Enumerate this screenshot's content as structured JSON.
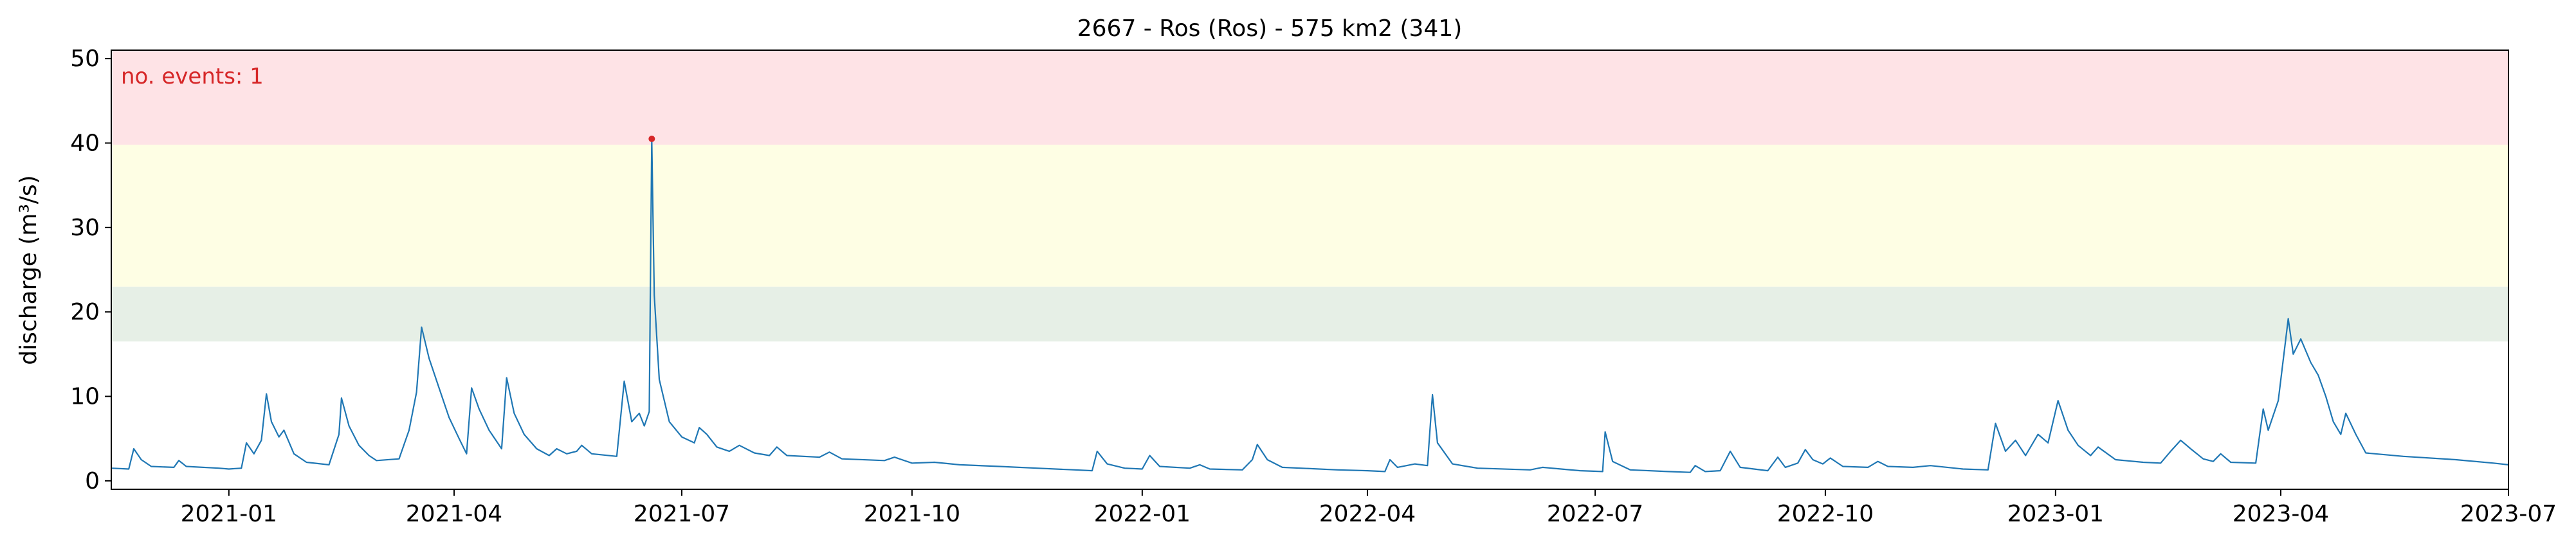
{
  "chart_data": {
    "type": "line",
    "title": "2667 - Ros (Ros) - 575 km2 (341)",
    "xlabel": "",
    "ylabel": "discharge (m³/s)",
    "annotation": "no. events: 1",
    "xlim": [
      "2020-11-15",
      "2023-07-01"
    ],
    "ylim": [
      -1,
      51
    ],
    "x_ticks": [
      {
        "date": "2021-01-01",
        "label": "2021-01"
      },
      {
        "date": "2021-04-01",
        "label": "2021-04"
      },
      {
        "date": "2021-07-01",
        "label": "2021-07"
      },
      {
        "date": "2021-10-01",
        "label": "2021-10"
      },
      {
        "date": "2022-01-01",
        "label": "2022-01"
      },
      {
        "date": "2022-04-01",
        "label": "2022-04"
      },
      {
        "date": "2022-07-01",
        "label": "2022-07"
      },
      {
        "date": "2022-10-01",
        "label": "2022-10"
      },
      {
        "date": "2023-01-01",
        "label": "2023-01"
      },
      {
        "date": "2023-04-01",
        "label": "2023-04"
      },
      {
        "date": "2023-07-01",
        "label": "2023-07"
      }
    ],
    "y_ticks": [
      0,
      10,
      20,
      30,
      40,
      50
    ],
    "bands": [
      {
        "from": 16.5,
        "to": 23.0,
        "color": "#e6efe6"
      },
      {
        "from": 23.0,
        "to": 39.8,
        "color": "#fefee4"
      },
      {
        "from": 39.8,
        "to": 51.0,
        "color": "#fee3e6"
      }
    ],
    "series": [
      {
        "color": "#1f77b4",
        "points": [
          [
            "2020-11-15",
            1.5
          ],
          [
            "2020-11-22",
            1.4
          ],
          [
            "2020-11-24",
            3.8
          ],
          [
            "2020-11-27",
            2.5
          ],
          [
            "2020-12-01",
            1.7
          ],
          [
            "2020-12-10",
            1.6
          ],
          [
            "2020-12-12",
            2.4
          ],
          [
            "2020-12-15",
            1.7
          ],
          [
            "2020-12-28",
            1.5
          ],
          [
            "2021-01-01",
            1.4
          ],
          [
            "2021-01-06",
            1.5
          ],
          [
            "2021-01-08",
            4.5
          ],
          [
            "2021-01-11",
            3.2
          ],
          [
            "2021-01-14",
            4.8
          ],
          [
            "2021-01-16",
            10.3
          ],
          [
            "2021-01-18",
            7.0
          ],
          [
            "2021-01-21",
            5.2
          ],
          [
            "2021-01-23",
            6.0
          ],
          [
            "2021-01-27",
            3.2
          ],
          [
            "2021-02-01",
            2.2
          ],
          [
            "2021-02-10",
            1.9
          ],
          [
            "2021-02-14",
            5.5
          ],
          [
            "2021-02-15",
            9.8
          ],
          [
            "2021-02-18",
            6.5
          ],
          [
            "2021-02-22",
            4.2
          ],
          [
            "2021-02-26",
            3.0
          ],
          [
            "2021-03-01",
            2.4
          ],
          [
            "2021-03-10",
            2.6
          ],
          [
            "2021-03-14",
            6.0
          ],
          [
            "2021-03-17",
            10.5
          ],
          [
            "2021-03-19",
            18.2
          ],
          [
            "2021-03-22",
            14.5
          ],
          [
            "2021-03-26",
            11.0
          ],
          [
            "2021-03-30",
            7.5
          ],
          [
            "2021-04-03",
            5.0
          ],
          [
            "2021-04-06",
            3.2
          ],
          [
            "2021-04-08",
            11.0
          ],
          [
            "2021-04-11",
            8.5
          ],
          [
            "2021-04-15",
            6.0
          ],
          [
            "2021-04-20",
            3.8
          ],
          [
            "2021-04-22",
            12.2
          ],
          [
            "2021-04-25",
            8.0
          ],
          [
            "2021-04-29",
            5.5
          ],
          [
            "2021-05-04",
            3.8
          ],
          [
            "2021-05-09",
            3.0
          ],
          [
            "2021-05-12",
            3.8
          ],
          [
            "2021-05-16",
            3.2
          ],
          [
            "2021-05-20",
            3.5
          ],
          [
            "2021-05-22",
            4.2
          ],
          [
            "2021-05-26",
            3.2
          ],
          [
            "2021-06-05",
            2.9
          ],
          [
            "2021-06-08",
            11.8
          ],
          [
            "2021-06-11",
            7.0
          ],
          [
            "2021-06-14",
            8.0
          ],
          [
            "2021-06-16",
            6.5
          ],
          [
            "2021-06-18",
            8.2
          ],
          [
            "2021-06-19",
            40.5
          ],
          [
            "2021-06-20",
            22.0
          ],
          [
            "2021-06-22",
            12.0
          ],
          [
            "2021-06-26",
            7.0
          ],
          [
            "2021-07-01",
            5.2
          ],
          [
            "2021-07-06",
            4.5
          ],
          [
            "2021-07-08",
            6.3
          ],
          [
            "2021-07-11",
            5.5
          ],
          [
            "2021-07-15",
            4.0
          ],
          [
            "2021-07-20",
            3.5
          ],
          [
            "2021-07-24",
            4.2
          ],
          [
            "2021-07-30",
            3.3
          ],
          [
            "2021-08-05",
            3.0
          ],
          [
            "2021-08-08",
            4.0
          ],
          [
            "2021-08-12",
            3.0
          ],
          [
            "2021-08-25",
            2.8
          ],
          [
            "2021-08-29",
            3.4
          ],
          [
            "2021-09-03",
            2.6
          ],
          [
            "2021-09-20",
            2.4
          ],
          [
            "2021-09-24",
            2.8
          ],
          [
            "2021-10-01",
            2.1
          ],
          [
            "2021-10-10",
            2.2
          ],
          [
            "2021-10-20",
            1.9
          ],
          [
            "2021-11-05",
            1.7
          ],
          [
            "2021-11-20",
            1.5
          ],
          [
            "2021-12-05",
            1.3
          ],
          [
            "2021-12-12",
            1.2
          ],
          [
            "2021-12-14",
            3.5
          ],
          [
            "2021-12-18",
            2.0
          ],
          [
            "2021-12-25",
            1.5
          ],
          [
            "2022-01-01",
            1.4
          ],
          [
            "2022-01-04",
            3.0
          ],
          [
            "2022-01-08",
            1.7
          ],
          [
            "2022-01-20",
            1.5
          ],
          [
            "2022-01-24",
            1.9
          ],
          [
            "2022-01-28",
            1.4
          ],
          [
            "2022-02-10",
            1.3
          ],
          [
            "2022-02-14",
            2.5
          ],
          [
            "2022-02-16",
            4.3
          ],
          [
            "2022-02-20",
            2.5
          ],
          [
            "2022-02-26",
            1.6
          ],
          [
            "2022-03-20",
            1.3
          ],
          [
            "2022-04-01",
            1.2
          ],
          [
            "2022-04-08",
            1.1
          ],
          [
            "2022-04-10",
            2.5
          ],
          [
            "2022-04-13",
            1.6
          ],
          [
            "2022-04-20",
            2.0
          ],
          [
            "2022-04-25",
            1.8
          ],
          [
            "2022-04-27",
            10.2
          ],
          [
            "2022-04-29",
            4.5
          ],
          [
            "2022-05-05",
            2.0
          ],
          [
            "2022-05-15",
            1.5
          ],
          [
            "2022-06-05",
            1.3
          ],
          [
            "2022-06-10",
            1.6
          ],
          [
            "2022-06-25",
            1.2
          ],
          [
            "2022-07-04",
            1.1
          ],
          [
            "2022-07-05",
            5.8
          ],
          [
            "2022-07-08",
            2.3
          ],
          [
            "2022-07-15",
            1.3
          ],
          [
            "2022-07-30",
            1.1
          ],
          [
            "2022-08-08",
            1.0
          ],
          [
            "2022-08-10",
            1.8
          ],
          [
            "2022-08-14",
            1.1
          ],
          [
            "2022-08-20",
            1.2
          ],
          [
            "2022-08-24",
            3.5
          ],
          [
            "2022-08-28",
            1.6
          ],
          [
            "2022-09-08",
            1.2
          ],
          [
            "2022-09-12",
            2.8
          ],
          [
            "2022-09-15",
            1.6
          ],
          [
            "2022-09-20",
            2.1
          ],
          [
            "2022-09-23",
            3.7
          ],
          [
            "2022-09-26",
            2.5
          ],
          [
            "2022-09-30",
            2.0
          ],
          [
            "2022-10-03",
            2.7
          ],
          [
            "2022-10-08",
            1.7
          ],
          [
            "2022-10-18",
            1.6
          ],
          [
            "2022-10-22",
            2.3
          ],
          [
            "2022-10-26",
            1.7
          ],
          [
            "2022-11-05",
            1.6
          ],
          [
            "2022-11-12",
            1.8
          ],
          [
            "2022-11-25",
            1.4
          ],
          [
            "2022-12-05",
            1.3
          ],
          [
            "2022-12-08",
            6.8
          ],
          [
            "2022-12-12",
            3.5
          ],
          [
            "2022-12-16",
            4.8
          ],
          [
            "2022-12-20",
            3.0
          ],
          [
            "2022-12-25",
            5.5
          ],
          [
            "2022-12-29",
            4.5
          ],
          [
            "2023-01-02",
            9.5
          ],
          [
            "2023-01-06",
            6.0
          ],
          [
            "2023-01-10",
            4.2
          ],
          [
            "2023-01-15",
            3.0
          ],
          [
            "2023-01-18",
            4.0
          ],
          [
            "2023-01-25",
            2.5
          ],
          [
            "2023-02-05",
            2.2
          ],
          [
            "2023-02-12",
            2.1
          ],
          [
            "2023-02-16",
            3.5
          ],
          [
            "2023-02-20",
            4.8
          ],
          [
            "2023-02-24",
            3.8
          ],
          [
            "2023-03-01",
            2.6
          ],
          [
            "2023-03-05",
            2.3
          ],
          [
            "2023-03-08",
            3.2
          ],
          [
            "2023-03-12",
            2.2
          ],
          [
            "2023-03-22",
            2.1
          ],
          [
            "2023-03-25",
            8.5
          ],
          [
            "2023-03-27",
            6.0
          ],
          [
            "2023-03-31",
            9.5
          ],
          [
            "2023-04-04",
            19.2
          ],
          [
            "2023-04-06",
            15.0
          ],
          [
            "2023-04-09",
            16.8
          ],
          [
            "2023-04-13",
            14.0
          ],
          [
            "2023-04-16",
            12.5
          ],
          [
            "2023-04-19",
            10.0
          ],
          [
            "2023-04-22",
            7.0
          ],
          [
            "2023-04-25",
            5.5
          ],
          [
            "2023-04-27",
            8.0
          ],
          [
            "2023-05-01",
            5.5
          ],
          [
            "2023-05-05",
            3.3
          ],
          [
            "2023-05-20",
            2.9
          ],
          [
            "2023-06-10",
            2.5
          ],
          [
            "2023-06-25",
            2.1
          ],
          [
            "2023-07-01",
            1.9
          ]
        ]
      }
    ],
    "events": [
      {
        "date": "2021-06-19",
        "value": 40.5,
        "color": "#d62728"
      }
    ],
    "annotation_color": "#d62728",
    "grid": false
  }
}
